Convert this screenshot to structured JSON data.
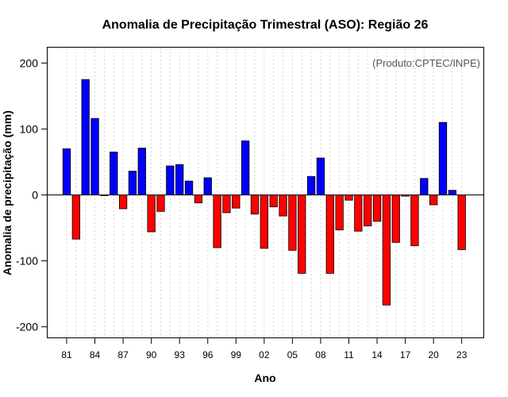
{
  "chart_data": {
    "type": "bar",
    "title": "Anomalia de Precipitação Trimestral (ASO): Região 26",
    "xlabel": "Ano",
    "ylabel": "Anomalia de precipitação (mm)",
    "credit": "(Produto:CPTEC/INPE)",
    "ylim": [
      -218,
      225
    ],
    "yticks": [
      200,
      100,
      0,
      -100,
      -200
    ],
    "ytick_labels": [
      "200",
      "100",
      "0",
      "-100",
      "-200"
    ],
    "xtick_labels": [
      "81",
      "84",
      "87",
      "90",
      "93",
      "96",
      "99",
      "02",
      "05",
      "08",
      "11",
      "14",
      "17",
      "20",
      "23"
    ],
    "xtick_years": [
      1981,
      1984,
      1987,
      1990,
      1993,
      1996,
      1999,
      2002,
      2005,
      2008,
      2011,
      2014,
      2017,
      2020,
      2023
    ],
    "grid": true,
    "colors": {
      "positive": "#0000ff",
      "negative": "#ff0000",
      "border": "#000000",
      "grid": "#d3d3d3"
    },
    "categories": [
      1981,
      1982,
      1983,
      1984,
      1985,
      1986,
      1987,
      1988,
      1989,
      1990,
      1991,
      1992,
      1993,
      1994,
      1995,
      1996,
      1997,
      1998,
      1999,
      2000,
      2001,
      2002,
      2003,
      2004,
      2005,
      2006,
      2007,
      2008,
      2009,
      2010,
      2011,
      2012,
      2013,
      2014,
      2015,
      2016,
      2017,
      2018,
      2019,
      2020,
      2021,
      2022,
      2023
    ],
    "values": [
      70,
      -67,
      175,
      116,
      -1,
      65,
      -21,
      36,
      71,
      -56,
      -25,
      44,
      46,
      21,
      -12,
      26,
      -80,
      -27,
      -20,
      82,
      -29,
      -81,
      -18,
      -32,
      -84,
      -119,
      28,
      56,
      -119,
      -53,
      -8,
      -55,
      -47,
      -40,
      -167,
      -72,
      -2,
      -77,
      25,
      -15,
      110,
      7,
      -83
    ]
  }
}
